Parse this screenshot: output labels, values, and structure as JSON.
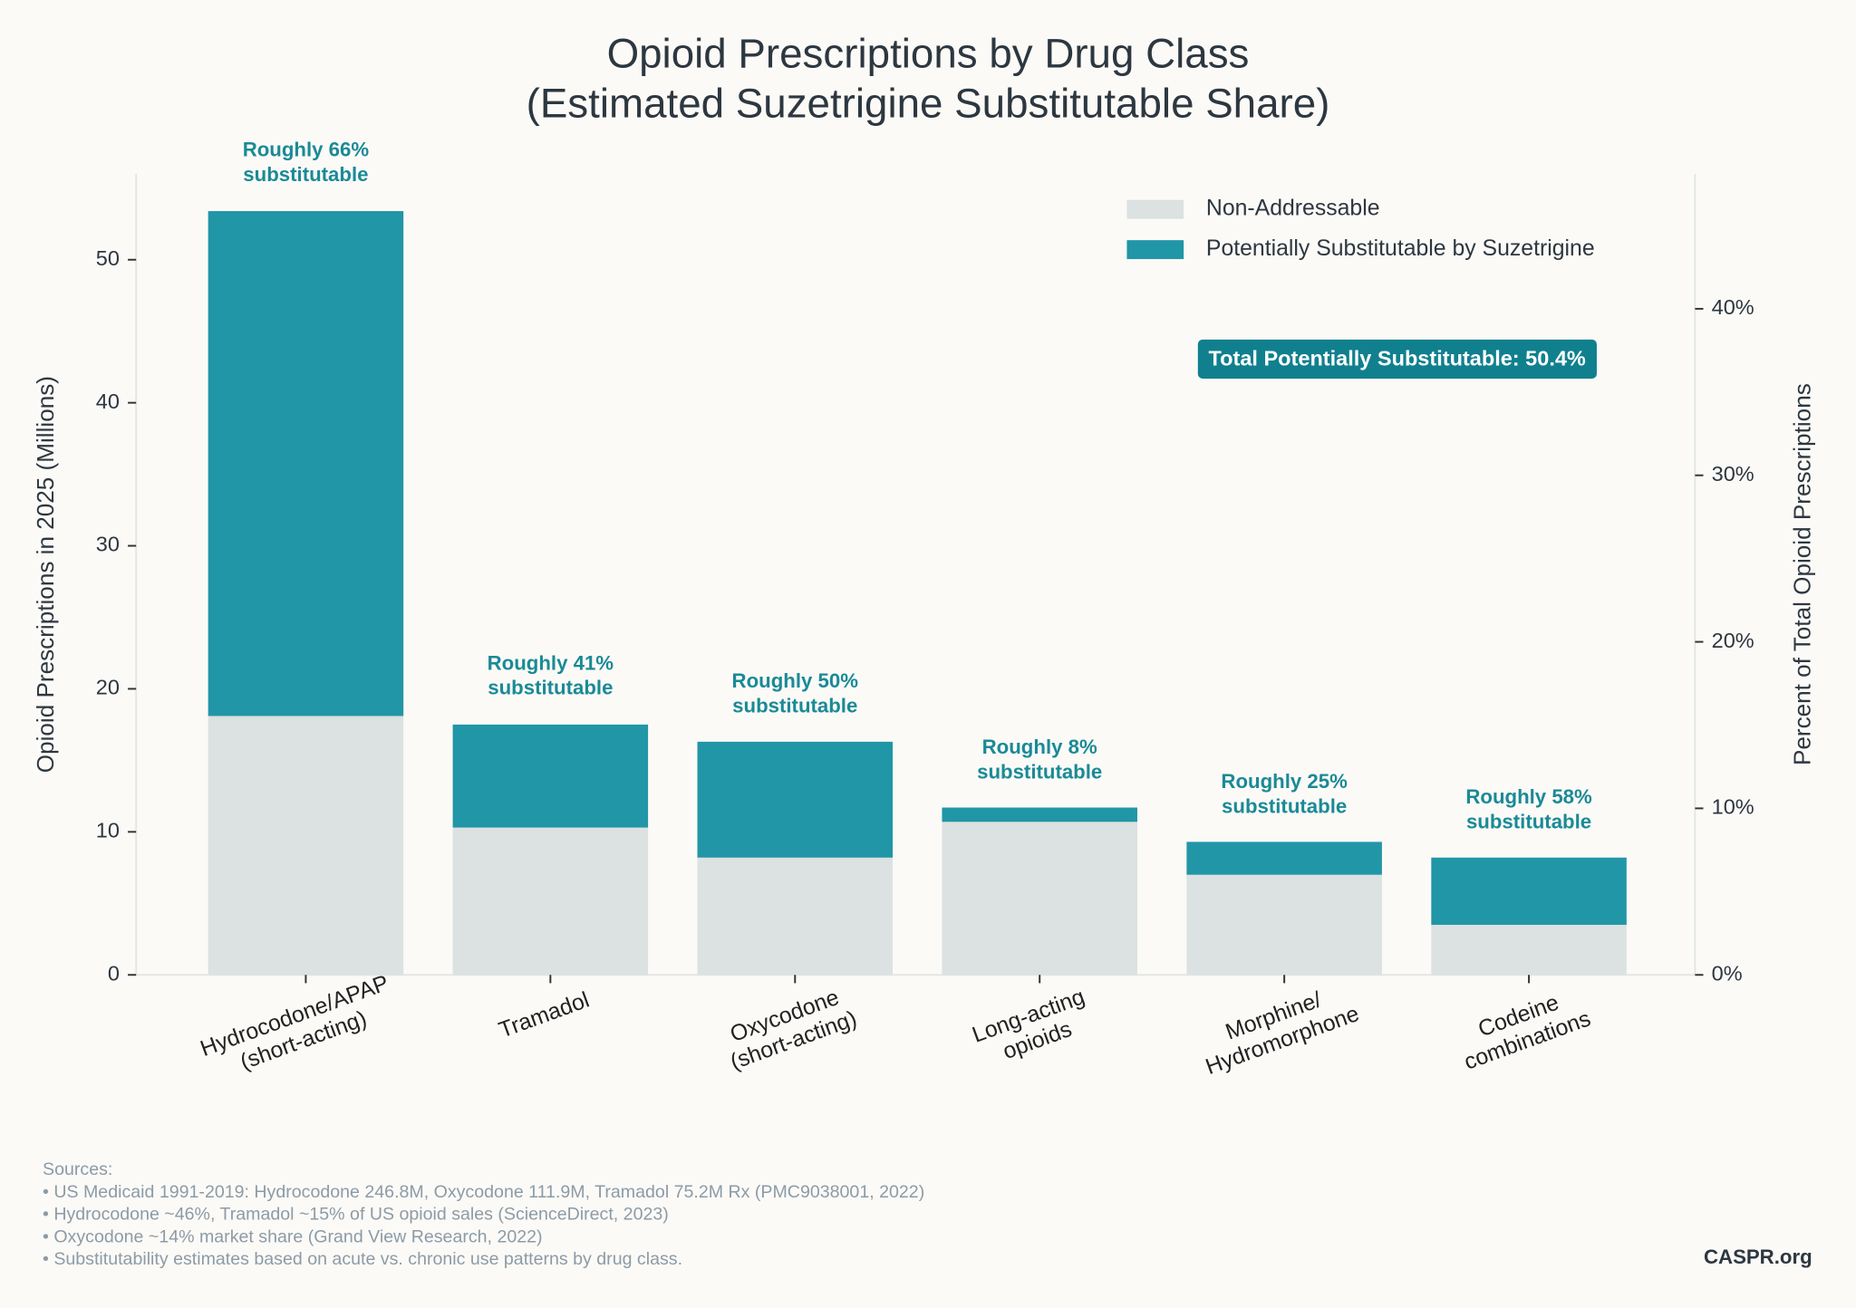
{
  "chart_data": {
    "type": "stacked_bar",
    "title": "Opioid Prescriptions by Drug Class",
    "subtitle": "(Estimated Suzetrigine Substitutable Share)",
    "categories": [
      "Hydrocodone/APAP\n(short-acting)",
      "Tramadol",
      "Oxycodone\n(short-acting)",
      "Long-acting\nopioids",
      "Morphine/\nHydromorphone",
      "Codeine\ncombinations"
    ],
    "series": [
      {
        "name": "Non-Addressable",
        "color": "#dce1e1",
        "values": [
          18.1,
          10.3,
          8.2,
          10.7,
          7.0,
          3.5
        ]
      },
      {
        "name": "Potentially Substitutable by Suzetrigine",
        "color": "#2196a6",
        "values": [
          35.3,
          7.2,
          8.1,
          1.0,
          2.3,
          4.7
        ]
      }
    ],
    "annotations": [
      "Roughly 66%\nsubstitutable",
      "Roughly 41%\nsubstitutable",
      "Roughly 50%\nsubstitutable",
      "Roughly 8%\nsubstitutable",
      "Roughly 25%\nsubstitutable",
      "Roughly 58%\nsubstitutable"
    ],
    "ylabel": "Opioid Prescriptions in 2025 (Millions)",
    "y2label": "Percent of Total Opioid Prescriptions",
    "ylim": [
      0,
      56
    ],
    "yticks": [
      0,
      10,
      20,
      30,
      40,
      50
    ],
    "y2lim": [
      0,
      48.1
    ],
    "y2ticks": [
      {
        "value": 0,
        "label": "0%"
      },
      {
        "value": 10,
        "label": "10%"
      },
      {
        "value": 20,
        "label": "20%"
      },
      {
        "value": 30,
        "label": "30%"
      },
      {
        "value": 40,
        "label": "40%"
      }
    ],
    "legend": "upper right",
    "callout": "Total Potentially Substitutable: 50.4%",
    "sources_title": "Sources:",
    "sources": [
      "• US Medicaid 1991-2019: Hydrocodone 246.8M, Oxycodone 111.9M, Tramadol 75.2M Rx (PMC9038001, 2022)",
      "• Hydrocodone ~46%, Tramadol ~15% of US opioid sales (ScienceDirect, 2023)",
      "• Oxycodone ~14% market share (Grand View Research, 2022)",
      "• Substitutability estimates based on acute vs. chronic use patterns by drug class."
    ],
    "brand": "CASPR.org"
  }
}
